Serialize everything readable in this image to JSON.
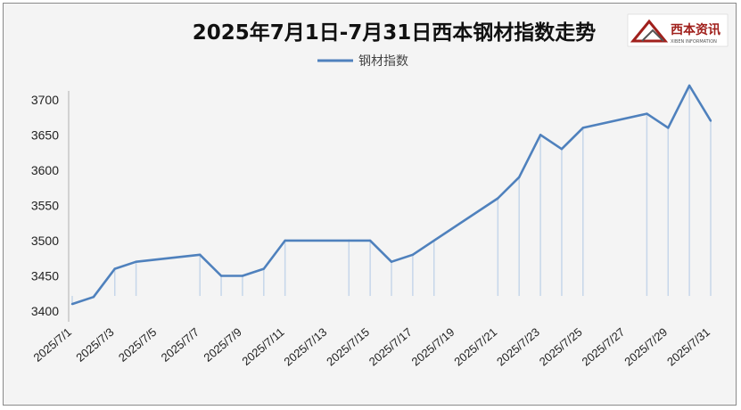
{
  "chart_data": {
    "type": "line",
    "title": "2025年7月1日-7月31日西本钢材指数走势",
    "legend": "钢材指数",
    "legend_position": "top",
    "grid": false,
    "drop_lines": true,
    "line_color": "#4f81bd",
    "ylim": [
      3400,
      3720
    ],
    "yticks": [
      3400,
      3450,
      3500,
      3550,
      3600,
      3650,
      3700
    ],
    "x": [
      "2025/7/1",
      "2025/7/2",
      "2025/7/3",
      "2025/7/4",
      "2025/7/7",
      "2025/7/8",
      "2025/7/9",
      "2025/7/10",
      "2025/7/11",
      "2025/7/14",
      "2025/7/15",
      "2025/7/16",
      "2025/7/17",
      "2025/7/18",
      "2025/7/21",
      "2025/7/22",
      "2025/7/23",
      "2025/7/24",
      "2025/7/25",
      "2025/7/28",
      "2025/7/29",
      "2025/7/30",
      "2025/7/31"
    ],
    "x_tick_labels": [
      "2025/7/1",
      "2025/7/3",
      "2025/7/5",
      "2025/7/7",
      "2025/7/9",
      "2025/7/11",
      "2025/7/13",
      "2025/7/15",
      "2025/7/17",
      "2025/7/19",
      "2025/7/21",
      "2025/7/23",
      "2025/7/25",
      "2025/7/27",
      "2025/7/29",
      "2025/7/31"
    ],
    "series": [
      {
        "name": "钢材指数",
        "values": [
          3410,
          3420,
          3460,
          3470,
          3480,
          3450,
          3450,
          3460,
          3500,
          3500,
          3500,
          3470,
          3480,
          3500,
          3560,
          3590,
          3650,
          3630,
          3660,
          3680,
          3660,
          3720,
          3670
        ]
      }
    ]
  },
  "logo": {
    "text": "西本资讯",
    "subtext": "XIBEN INFORMATION",
    "brand_color": "#a0201c"
  }
}
